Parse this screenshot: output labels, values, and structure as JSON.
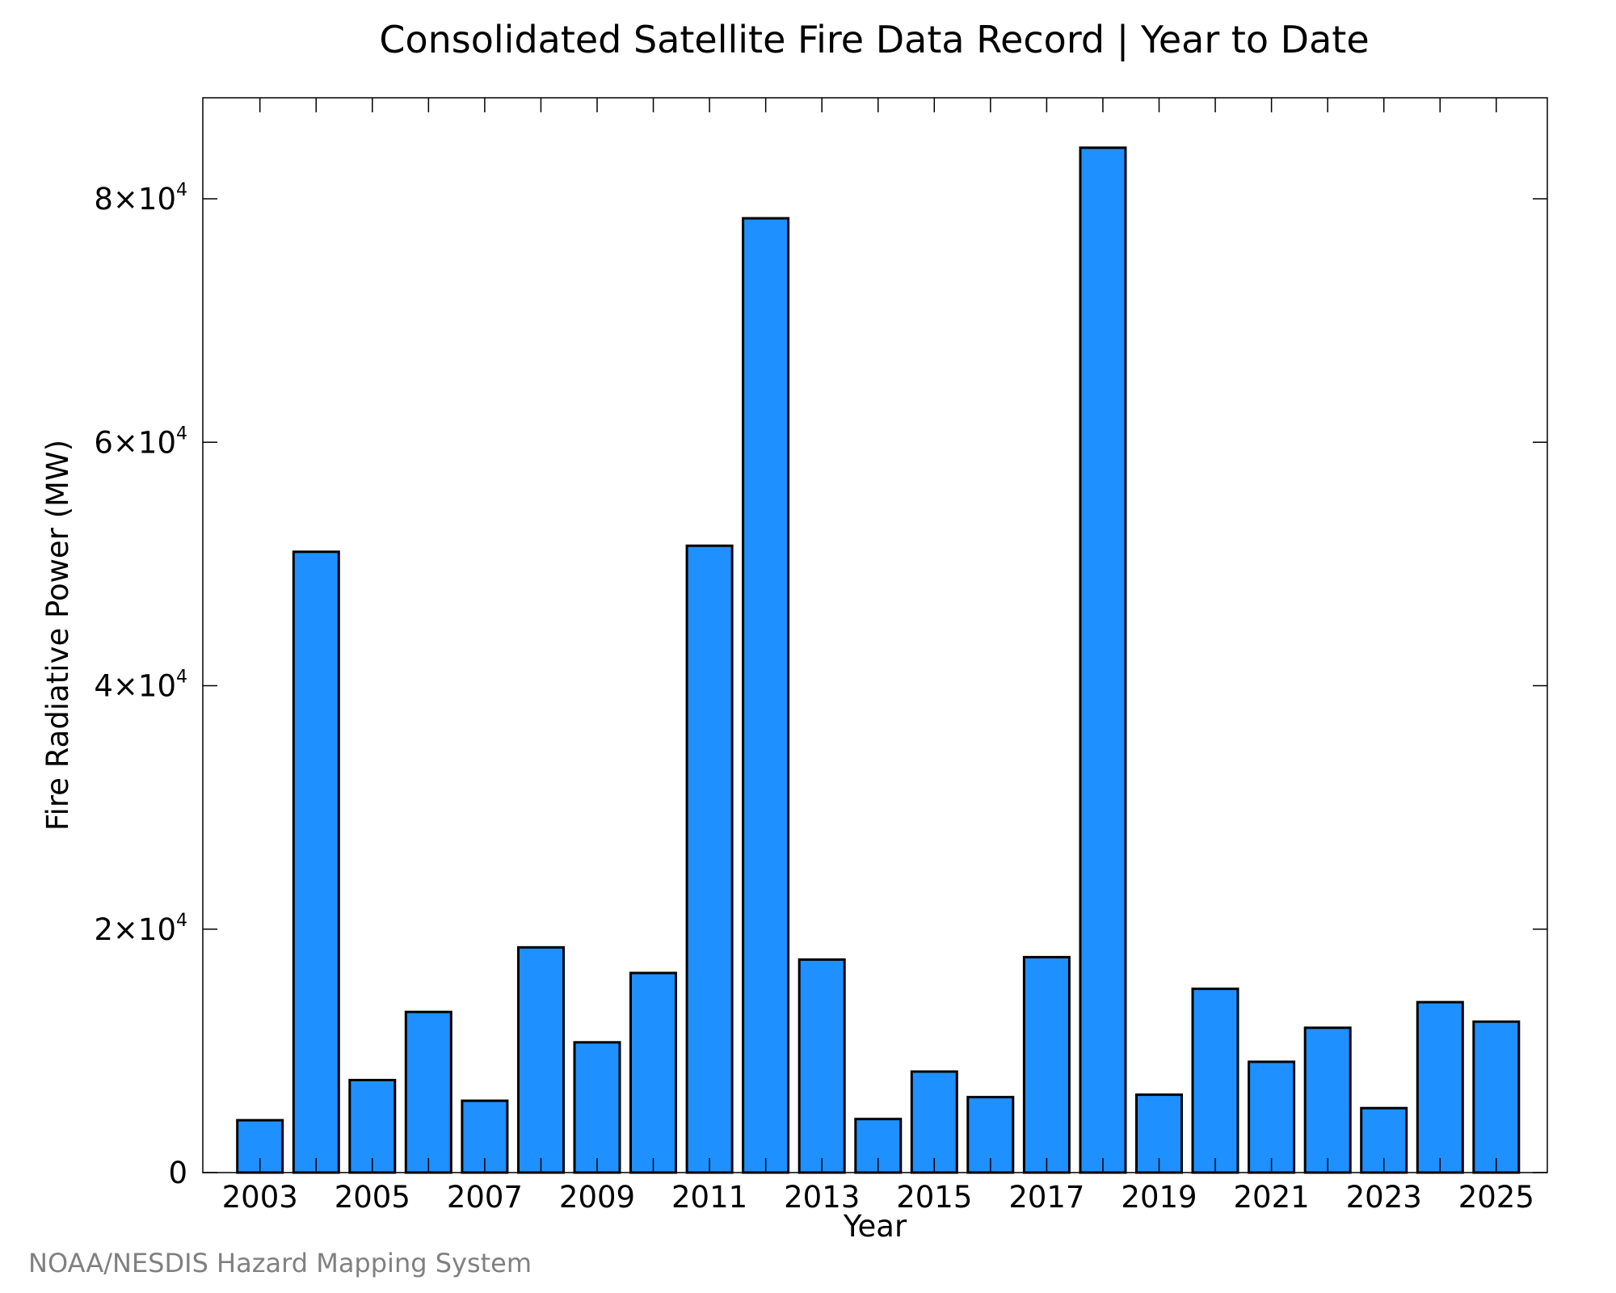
{
  "chart_data": {
    "type": "bar",
    "title": "Consolidated Satellite Fire Data Record | Year to Date",
    "xlabel": "Year",
    "ylabel": "Fire Radiative Power (MW)",
    "credit": "NOAA/NESDIS Hazard Mapping System",
    "bar_color": "#1E90FF",
    "categories": [
      "2003",
      "2004",
      "2005",
      "2006",
      "2007",
      "2008",
      "2009",
      "2010",
      "2011",
      "2012",
      "2013",
      "2014",
      "2015",
      "2016",
      "2017",
      "2018",
      "2019",
      "2020",
      "2021",
      "2022",
      "2023",
      "2024",
      "2025"
    ],
    "values": [
      4300,
      51000,
      7600,
      13200,
      5900,
      18500,
      10700,
      16400,
      51500,
      78400,
      17500,
      4400,
      8300,
      6200,
      17700,
      84200,
      6400,
      15100,
      9100,
      11900,
      5300,
      14000,
      12400
    ],
    "xticks": [
      "2003",
      "2005",
      "2007",
      "2009",
      "2011",
      "2013",
      "2015",
      "2017",
      "2019",
      "2021",
      "2023",
      "2025"
    ],
    "ylim": [
      0,
      88300
    ],
    "yticks": [
      {
        "value": 0,
        "mantissa": "0",
        "exponent": ""
      },
      {
        "value": 20000,
        "mantissa": "2×10",
        "exponent": "4"
      },
      {
        "value": 40000,
        "mantissa": "4×10",
        "exponent": "4"
      },
      {
        "value": 60000,
        "mantissa": "6×10",
        "exponent": "4"
      },
      {
        "value": 80000,
        "mantissa": "8×10",
        "exponent": "4"
      }
    ],
    "grid": false,
    "legend": "none"
  }
}
